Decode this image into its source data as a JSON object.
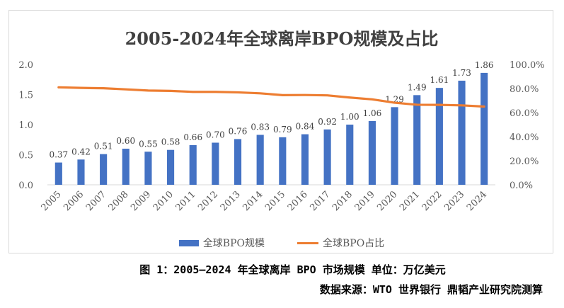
{
  "chart_data": {
    "type": "bar",
    "title": "2005-2024年全球离岸BPO规模及占比",
    "categories": [
      "2005",
      "2006",
      "2007",
      "2008",
      "2009",
      "2010",
      "2011",
      "2012",
      "2013",
      "2014",
      "2015",
      "2016",
      "2017",
      "2018",
      "2019",
      "2020",
      "2021",
      "2022",
      "2023",
      "2024"
    ],
    "series": [
      {
        "name": "全球BPO规模",
        "type": "bar",
        "axis": "left",
        "color": "#4472c4",
        "values": [
          0.37,
          0.42,
          0.51,
          0.6,
          0.55,
          0.58,
          0.66,
          0.7,
          0.76,
          0.83,
          0.79,
          0.84,
          0.92,
          1.0,
          1.06,
          1.29,
          1.49,
          1.61,
          1.73,
          1.86
        ],
        "labels": [
          "0.37",
          "0.42",
          "0.51",
          "0.60",
          "0.55",
          "0.58",
          "0.66",
          "0.70",
          "0.76",
          "0.83",
          "0.79",
          "0.84",
          "0.92",
          "1.00",
          "1.06",
          "1.29",
          "1.49",
          "1.61",
          "1.73",
          "1.86"
        ]
      },
      {
        "name": "全球BPO占比",
        "type": "line",
        "axis": "right",
        "color": "#ed7d31",
        "values": [
          81.0,
          80.5,
          80.2,
          79.3,
          78.3,
          78.0,
          77.2,
          77.2,
          76.8,
          76.0,
          74.5,
          74.6,
          74.3,
          72.5,
          71.0,
          68.2,
          66.5,
          66.4,
          66.0,
          65.0
        ]
      }
    ],
    "y_left": {
      "ylim": [
        0,
        2.0
      ],
      "ticks": [
        "0.0",
        "0.5",
        "1.0",
        "1.5",
        "2.0"
      ]
    },
    "y_right": {
      "ylim": [
        0,
        100
      ],
      "ticks": [
        "0.0%",
        "20.0%",
        "40.0%",
        "60.0%",
        "80.0%",
        "100.0%"
      ]
    },
    "grid": false,
    "legend": "bottom"
  },
  "captions": {
    "figure": "图 1：2005—2024 年全球离岸 BPO 市场规模  单位：万亿美元",
    "source": "数据来源：WTO 世界银行 鼎韬产业研究院测算"
  }
}
